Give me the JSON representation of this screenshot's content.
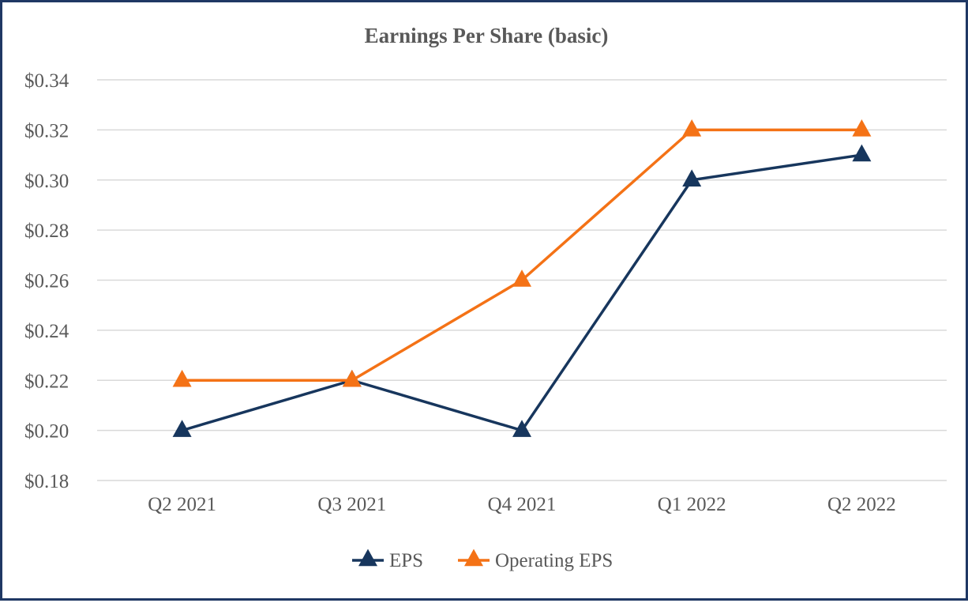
{
  "chart_data": {
    "type": "line",
    "title": "Earnings Per Share (basic)",
    "categories": [
      "Q2 2021",
      "Q3 2021",
      "Q4 2021",
      "Q1 2022",
      "Q2 2022"
    ],
    "series": [
      {
        "name": "EPS",
        "values": [
          0.2,
          0.22,
          0.2,
          0.3,
          0.31
        ],
        "color": "#17365d",
        "marker": "triangle"
      },
      {
        "name": "Operating EPS",
        "values": [
          0.22,
          0.22,
          0.26,
          0.32,
          0.32
        ],
        "color": "#f47216",
        "marker": "triangle"
      }
    ],
    "ylim": [
      0.18,
      0.34
    ],
    "yticks": [
      0.18,
      0.2,
      0.22,
      0.24,
      0.26,
      0.28,
      0.3,
      0.32,
      0.34
    ],
    "ytick_labels": [
      "$0.18",
      "$0.20",
      "$0.22",
      "$0.24",
      "$0.26",
      "$0.28",
      "$0.30",
      "$0.32",
      "$0.34"
    ],
    "grid": true,
    "legend_position": "bottom-center",
    "xlabel": "",
    "ylabel": ""
  }
}
